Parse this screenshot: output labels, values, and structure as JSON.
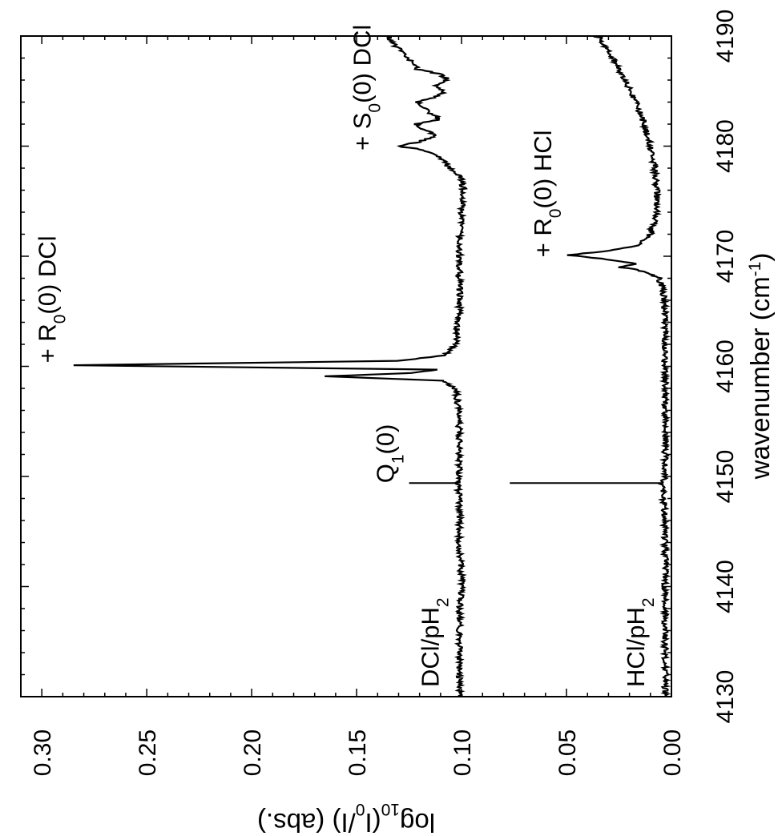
{
  "chart_data": {
    "type": "line",
    "orientation": "rotated-90-clockwise",
    "xlabel_parts": [
      "wavenumber (cm",
      "-1",
      ")"
    ],
    "ylabel_parts": [
      "log",
      "10",
      "(I",
      "0",
      "/I) (abs.)"
    ],
    "xlim": [
      4130,
      4190
    ],
    "ylim": [
      0.0,
      0.31
    ],
    "x_ticks": [
      "4130",
      "4140",
      "4150",
      "4160",
      "4170",
      "4180",
      "4190"
    ],
    "y_ticks": [
      "0.00",
      "0.05",
      "0.10",
      "0.15",
      "0.20",
      "0.25",
      "0.30"
    ],
    "series": [
      {
        "name_parts": [
          "DCl/pH",
          "2",
          ""
        ],
        "color": "#000000",
        "points": [
          [
            4130,
            0.101
          ],
          [
            4134,
            0.101
          ],
          [
            4138,
            0.101
          ],
          [
            4140,
            0.1
          ],
          [
            4144,
            0.101
          ],
          [
            4148,
            0.101
          ],
          [
            4149.4,
            0.102
          ],
          [
            4150,
            0.101
          ],
          [
            4154,
            0.101
          ],
          [
            4157,
            0.102
          ],
          [
            4158,
            0.103
          ],
          [
            4158.7,
            0.11
          ],
          [
            4159.1,
            0.164
          ],
          [
            4159.4,
            0.125
          ],
          [
            4159.7,
            0.112
          ],
          [
            4160.1,
            0.285
          ],
          [
            4160.5,
            0.13
          ],
          [
            4161,
            0.108
          ],
          [
            4162,
            0.103
          ],
          [
            4165,
            0.101
          ],
          [
            4168,
            0.101
          ],
          [
            4171,
            0.101
          ],
          [
            4174,
            0.1
          ],
          [
            4176,
            0.099
          ],
          [
            4177,
            0.1
          ],
          [
            4177.5,
            0.102
          ],
          [
            4178,
            0.106
          ],
          [
            4179,
            0.11
          ],
          [
            4179.7,
            0.12
          ],
          [
            4180,
            0.13
          ],
          [
            4180.4,
            0.12
          ],
          [
            4181,
            0.112
          ],
          [
            4181.5,
            0.118
          ],
          [
            4182,
            0.122
          ],
          [
            4182.4,
            0.11
          ],
          [
            4183,
            0.115
          ],
          [
            4183.5,
            0.118
          ],
          [
            4184,
            0.121
          ],
          [
            4184.5,
            0.112
          ],
          [
            4185,
            0.108
          ],
          [
            4185.5,
            0.113
          ],
          [
            4186,
            0.106
          ],
          [
            4186.5,
            0.11
          ],
          [
            4187,
            0.121
          ],
          [
            4187.5,
            0.123
          ],
          [
            4188,
            0.126
          ],
          [
            4188.5,
            0.128
          ],
          [
            4189,
            0.131
          ],
          [
            4190,
            0.135
          ]
        ]
      },
      {
        "name_parts": [
          "HCl/pH",
          "2",
          ""
        ],
        "color": "#000000",
        "points": [
          [
            4130,
            0.003
          ],
          [
            4135,
            0.003
          ],
          [
            4140,
            0.003
          ],
          [
            4145,
            0.003
          ],
          [
            4149.4,
            0.004
          ],
          [
            4150,
            0.003
          ],
          [
            4155,
            0.003
          ],
          [
            4160,
            0.003
          ],
          [
            4165,
            0.003
          ],
          [
            4167,
            0.004
          ],
          [
            4168,
            0.006
          ],
          [
            4168.6,
            0.012
          ],
          [
            4169,
            0.024
          ],
          [
            4169.3,
            0.017
          ],
          [
            4169.7,
            0.03
          ],
          [
            4170.1,
            0.049
          ],
          [
            4170.5,
            0.03
          ],
          [
            4171,
            0.016
          ],
          [
            4172,
            0.01
          ],
          [
            4174,
            0.007
          ],
          [
            4176,
            0.007
          ],
          [
            4178,
            0.008
          ],
          [
            4180,
            0.01
          ],
          [
            4182,
            0.013
          ],
          [
            4184,
            0.017
          ],
          [
            4186,
            0.022
          ],
          [
            4188,
            0.028
          ],
          [
            4190,
            0.035
          ]
        ]
      }
    ],
    "markers": [
      {
        "x": 4149.4,
        "y_from": 0.102,
        "y_to": 0.125
      },
      {
        "x": 4149.4,
        "y_from": 0.004,
        "y_to": 0.077
      }
    ],
    "annotations": [
      {
        "parts": [
          "+ R",
          "0",
          "(0) DCl"
        ],
        "x": 4160.3,
        "y": 0.288
      },
      {
        "parts": [
          "Q",
          "1",
          "(0)"
        ],
        "x": 4149.4,
        "y": 0.127
      },
      {
        "parts": [
          "+ S",
          "0",
          "(0) DCl"
        ],
        "x": 4179.6,
        "y": 0.138
      },
      {
        "parts": [
          "+ R",
          "0",
          "(0) HCl"
        ],
        "x": 4169.9,
        "y": 0.052
      }
    ]
  }
}
